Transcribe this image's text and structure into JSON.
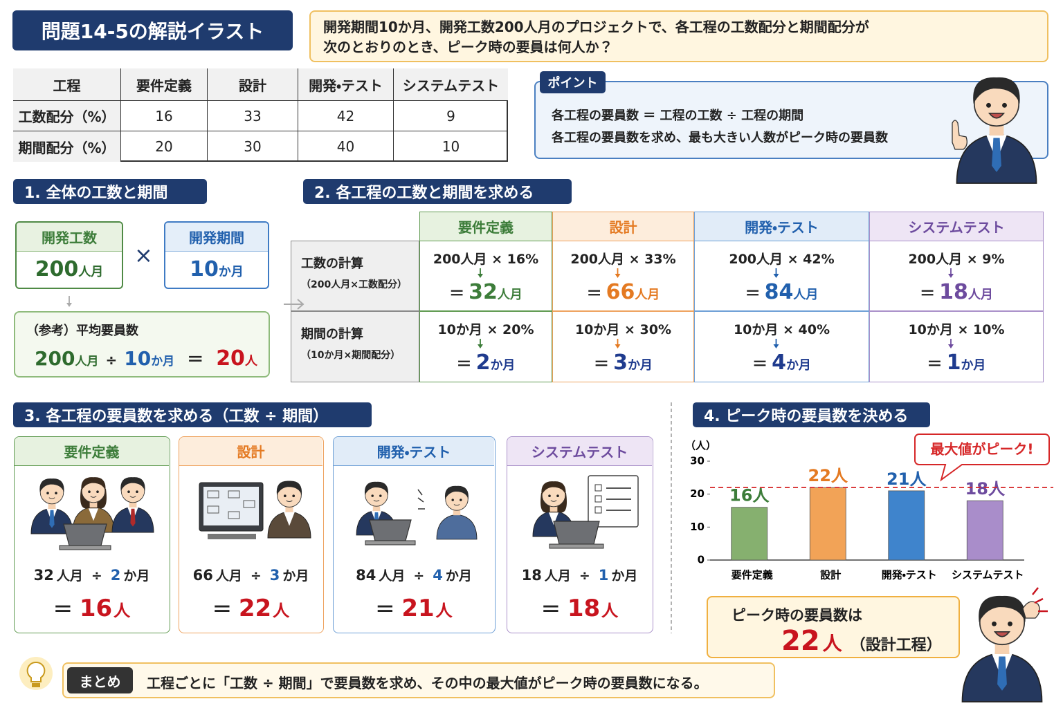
{
  "header": {
    "title": "問題14-5の解説イラスト",
    "question": [
      "開発期間10か月、開発工数200人月のプロジェクトで、各工程の工数配分と期間配分が",
      "次のとおりのとき、ピーク時の要員は何人か？"
    ]
  },
  "table": {
    "header": [
      "工程",
      "要件定義",
      "設計",
      "開発・テスト",
      "システムテスト"
    ],
    "rows": [
      [
        "工数配分（%）",
        16,
        33,
        42,
        9
      ],
      [
        "期間配分（%）",
        20,
        30,
        40,
        10
      ]
    ]
  },
  "point": {
    "label": "ポイント",
    "lines": [
      "各工程の要員数 ＝ 工程の工数 ÷ 工程の期間",
      "各工程の要員数を求め、最も大きい人数がピーク時の要員数"
    ]
  },
  "section1": {
    "heading": "1. 全体の工数と期間",
    "effort_label": "開発工数",
    "effort_value": "200",
    "effort_unit": "人月",
    "times": "×",
    "period_label": "開発期間",
    "period_value": "10",
    "period_unit": "か月",
    "ref_label": "（参考）平均要員数",
    "ref_a": "200",
    "ref_a_unit": "人月",
    "ref_op": "÷",
    "ref_b": "10",
    "ref_b_unit": "か月",
    "ref_eq": "＝",
    "ref_result": "20",
    "ref_result_unit": "人"
  },
  "section2": {
    "heading": "2. 各工程の工数と期間を求める",
    "row_labels": [
      {
        "title": "工数の計算",
        "sub": "（200人月×工数配分）"
      },
      {
        "title": "期間の計算",
        "sub": "（10か月×期間配分）"
      }
    ],
    "phases": [
      {
        "name": "要件定義",
        "effort_expr": "200人月 × 16%",
        "effort_eq": "＝",
        "effort_result": "32",
        "effort_unit": "人月",
        "period_expr": "10か月 × 20%",
        "period_eq": "＝",
        "period_result": "2",
        "period_unit": "か月"
      },
      {
        "name": "設計",
        "effort_expr": "200人月 × 33%",
        "effort_eq": "＝",
        "effort_result": "66",
        "effort_unit": "人月",
        "period_expr": "10か月 × 30%",
        "period_eq": "＝",
        "period_result": "3",
        "period_unit": "か月"
      },
      {
        "name": "開発・テスト",
        "effort_expr": "200人月 × 42%",
        "effort_eq": "＝",
        "effort_result": "84",
        "effort_unit": "人月",
        "period_expr": "10か月 × 40%",
        "period_eq": "＝",
        "period_result": "4",
        "period_unit": "か月"
      },
      {
        "name": "システムテスト",
        "effort_expr": "200人月 × 9%",
        "effort_eq": "＝",
        "effort_result": "18",
        "effort_unit": "人月",
        "period_expr": "10か月 × 10%",
        "period_eq": "＝",
        "period_result": "1",
        "period_unit": "か月"
      }
    ]
  },
  "section3": {
    "heading": "3. 各工程の要員数を求める（工数 ÷ 期間）",
    "cards": [
      {
        "name": "要件定義",
        "effort": "32",
        "effort_unit": "人月",
        "op": "÷",
        "period": "2",
        "period_unit": "か月",
        "eq": "＝",
        "result": "16",
        "result_unit": "人"
      },
      {
        "name": "設計",
        "effort": "66",
        "effort_unit": "人月",
        "op": "÷",
        "period": "3",
        "period_unit": "か月",
        "eq": "＝",
        "result": "22",
        "result_unit": "人"
      },
      {
        "name": "開発・テスト",
        "effort": "84",
        "effort_unit": "人月",
        "op": "÷",
        "period": "4",
        "period_unit": "か月",
        "eq": "＝",
        "result": "21",
        "result_unit": "人"
      },
      {
        "name": "システムテスト",
        "effort": "18",
        "effort_unit": "人月",
        "op": "÷",
        "period": "1",
        "period_unit": "か月",
        "eq": "＝",
        "result": "18",
        "result_unit": "人"
      }
    ]
  },
  "section4": {
    "heading": "4. ピーク時の要員数を決める"
  },
  "chart_data": {
    "type": "bar",
    "y_label": "（人）",
    "categories": [
      "要件定義",
      "設計",
      "開発・テスト",
      "システムテスト"
    ],
    "values": [
      16,
      22,
      21,
      18
    ],
    "value_labels": [
      "16人",
      "22人",
      "21人",
      "18人"
    ],
    "colors": [
      "#86b06f",
      "#f2a357",
      "#3f84cc",
      "#a98dca"
    ],
    "label_colors": [
      "#3d7d3a",
      "#e47a22",
      "#2160ad",
      "#6d4b9e"
    ],
    "ylim": [
      0,
      30
    ],
    "yticks": [
      0,
      10,
      20,
      30
    ],
    "reference_line": {
      "value": 22,
      "color": "#d62728"
    },
    "annotation": "最大値がピーク!"
  },
  "conclusion": {
    "text": "ピーク時の要員数は",
    "value": "22",
    "unit": "人",
    "note": "（設計工程）"
  },
  "summary": {
    "label": "まとめ",
    "text": "工程ごとに「工数 ÷ 期間」で要員数を求め、その中の最大値がピーク時の要員数になる。"
  }
}
